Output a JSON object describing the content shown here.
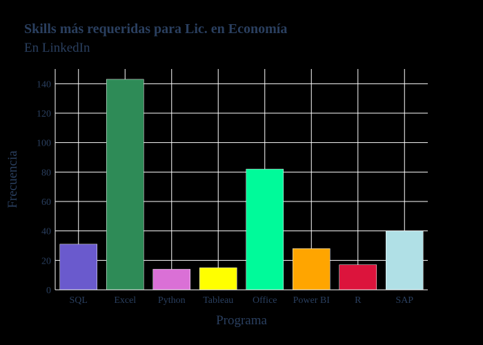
{
  "chart_data": {
    "type": "bar",
    "title": "Skills más requeridas para Lic. en Economía",
    "subtitle": "En LinkedIn",
    "xlabel": "Programa",
    "ylabel": "Frecuencia",
    "categories": [
      "SQL",
      "Excel",
      "Python",
      "Tableau",
      "Office",
      "Power BI",
      "R",
      "SAP"
    ],
    "values": [
      31,
      143,
      14,
      15,
      82,
      28,
      17,
      40
    ],
    "colors": [
      "#6a5acd",
      "#2e8b57",
      "#da70d6",
      "#ffff00",
      "#00fa9a",
      "#ffa500",
      "#dc143c",
      "#b0e0e6"
    ],
    "ylim": [
      0,
      150
    ],
    "yticks": [
      0,
      20,
      40,
      60,
      80,
      100,
      120,
      140
    ],
    "grid": true,
    "background": "#000000",
    "gridcolor": "#ffffff",
    "textcolor": "#2a3f5f"
  }
}
